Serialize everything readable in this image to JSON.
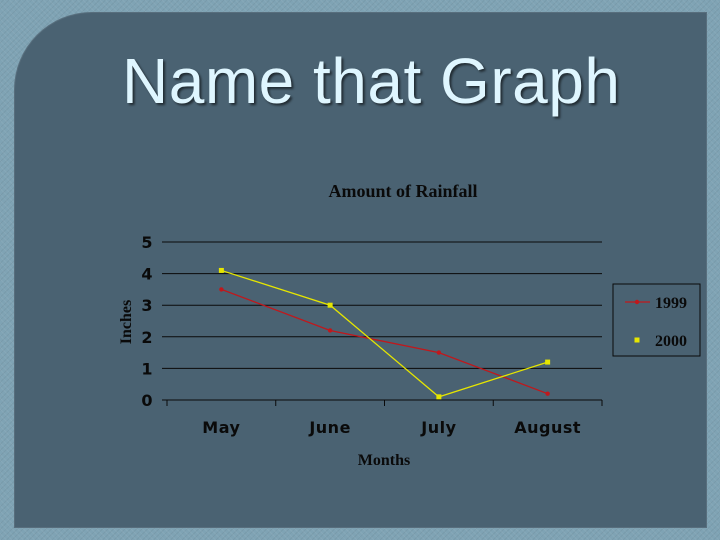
{
  "slide": {
    "title": "Name that Graph"
  },
  "chart_data": {
    "type": "line",
    "title": "Amount of Rainfall",
    "xlabel": "Months",
    "ylabel": "Inches",
    "categories": [
      "May",
      "June",
      "July",
      "August"
    ],
    "ylim": [
      0,
      5
    ],
    "yticks": [
      "0",
      "1",
      "2",
      "3",
      "4",
      "5"
    ],
    "grid": true,
    "legend_position": "right",
    "series": [
      {
        "name": "1999",
        "values": [
          3.5,
          2.2,
          1.5,
          0.2
        ],
        "color": "#c0181c"
      },
      {
        "name": "2000",
        "values": [
          4.1,
          3.0,
          0.1,
          1.2
        ],
        "color": "#e6e600"
      }
    ]
  }
}
